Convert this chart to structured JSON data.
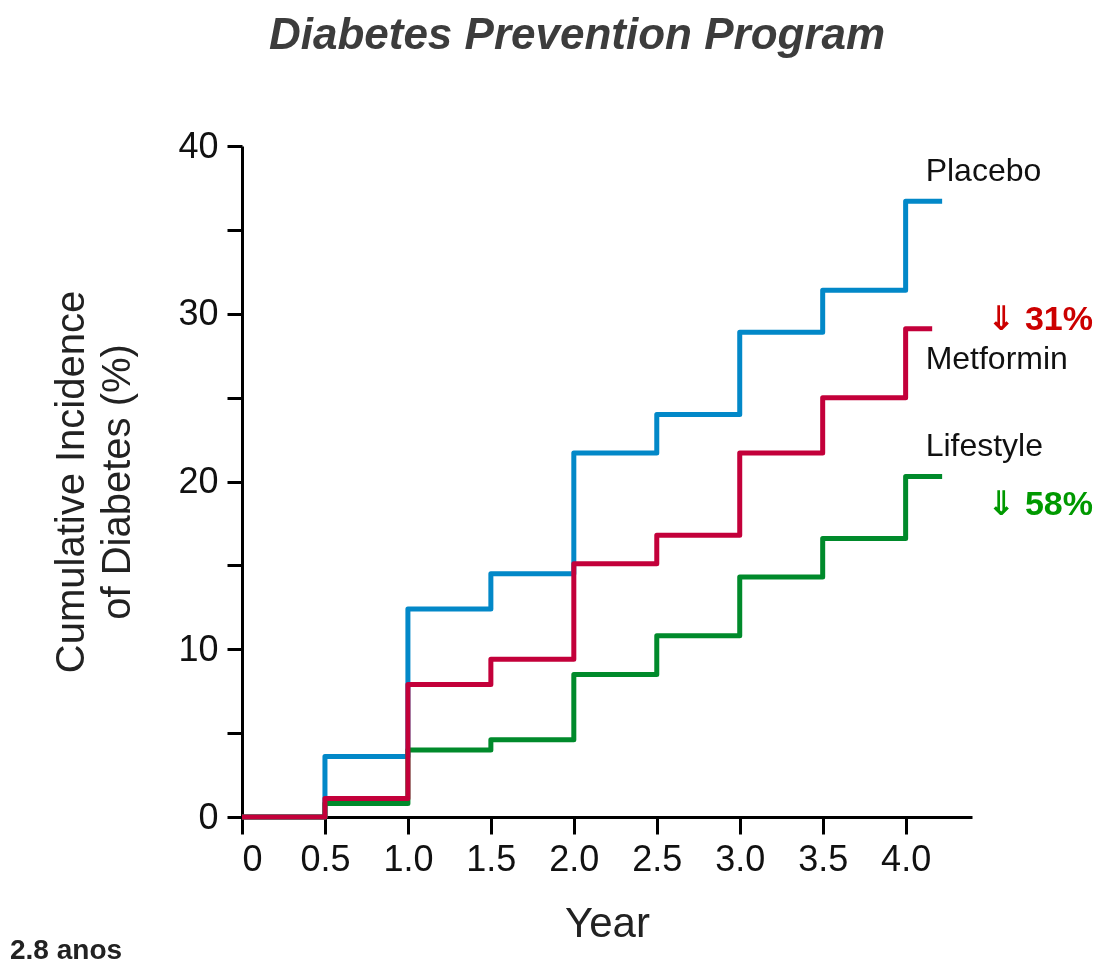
{
  "chart_data": {
    "type": "step",
    "title": "Diabetes Prevention Program",
    "xlabel": "Year",
    "ylabel": "Cumulative Incidence\nof Diabetes (%)",
    "series": [
      {
        "name": "Placebo",
        "color": "#0288c8",
        "x": [
          0,
          0.5,
          1,
          1.5,
          2,
          2.5,
          3,
          3.5,
          4,
          4.22
        ],
        "values": [
          0,
          3.6,
          12.4,
          14.5,
          21.7,
          24.0,
          28.9,
          31.4,
          36.7,
          36.7
        ]
      },
      {
        "name": "Lifestyle",
        "color": "#008a2b",
        "x": [
          0,
          0.5,
          1,
          1.5,
          2,
          2.5,
          3,
          3.5,
          4,
          4.22
        ],
        "values": [
          0,
          0.8,
          4.0,
          4.6,
          8.5,
          10.8,
          14.3,
          16.6,
          20.3,
          20.3
        ]
      },
      {
        "name": "Metformin",
        "color": "#c3003a",
        "x": [
          0,
          0.5,
          1,
          1.5,
          2,
          2.5,
          3,
          3.5,
          4,
          4.16
        ],
        "values": [
          0,
          1.1,
          7.9,
          9.4,
          15.1,
          16.8,
          21.7,
          25.0,
          29.1,
          29.1
        ]
      }
    ],
    "xlim": [
      0,
      4.4
    ],
    "xticks": [
      0,
      0.5,
      {
        "value": 1,
        "label": "1.0"
      },
      1.5,
      {
        "value": 2,
        "label": "2.0"
      },
      2.5,
      {
        "value": 3,
        "label": "3.0"
      },
      3.5,
      {
        "value": 4,
        "label": "4.0"
      }
    ],
    "ylim": [
      0,
      40
    ],
    "yticks": [
      0,
      {
        "value": 5,
        "label": null
      },
      10,
      {
        "value": 15,
        "label": null
      },
      20,
      {
        "value": 25,
        "label": null
      },
      30,
      {
        "value": 35,
        "label": null
      },
      40
    ],
    "grid": false,
    "legend": false,
    "marker": "none",
    "line_style": "solid",
    "annotations": [
      "⇓ 31%",
      "⇓ 58%",
      "2.8 anos"
    ]
  }
}
